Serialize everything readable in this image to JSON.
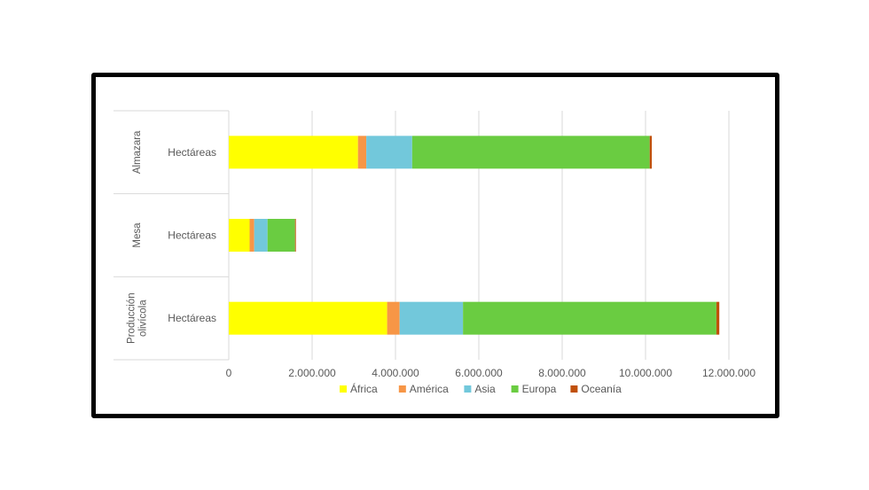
{
  "chart_data": {
    "type": "bar",
    "orientation": "horizontal",
    "stacked": true,
    "title": "",
    "xlabel": "",
    "ylabel": "",
    "xlim": [
      0,
      12000000
    ],
    "x_ticks": [
      0,
      2000000,
      4000000,
      6000000,
      8000000,
      10000000,
      12000000
    ],
    "x_tick_labels": [
      "0",
      "2.000.000",
      "4.000.000",
      "6.000.000",
      "8.000.000",
      "10.000.000",
      "12.000.000"
    ],
    "grid": true,
    "legend_position": "bottom",
    "groups": [
      {
        "name": "Almazara",
        "category": "Hectáreas"
      },
      {
        "name": "Mesa",
        "category": "Hectáreas"
      },
      {
        "name": "Producción olivícola",
        "lines": [
          "Producción",
          "olivícola"
        ],
        "category": "Hectáreas"
      }
    ],
    "series": [
      {
        "name": "África",
        "color": "#FFFF00",
        "values": [
          3100000,
          500000,
          3800000
        ]
      },
      {
        "name": "América",
        "color": "#F79646",
        "values": [
          200000,
          110000,
          300000
        ]
      },
      {
        "name": "Asia",
        "color": "#72C8DB",
        "values": [
          1100000,
          320000,
          1520000
        ]
      },
      {
        "name": "Europa",
        "color": "#6ACC41",
        "values": [
          5700000,
          660000,
          6080000
        ]
      },
      {
        "name": "Oceanía",
        "color": "#C0500A",
        "values": [
          50000,
          20000,
          70000
        ]
      }
    ]
  }
}
